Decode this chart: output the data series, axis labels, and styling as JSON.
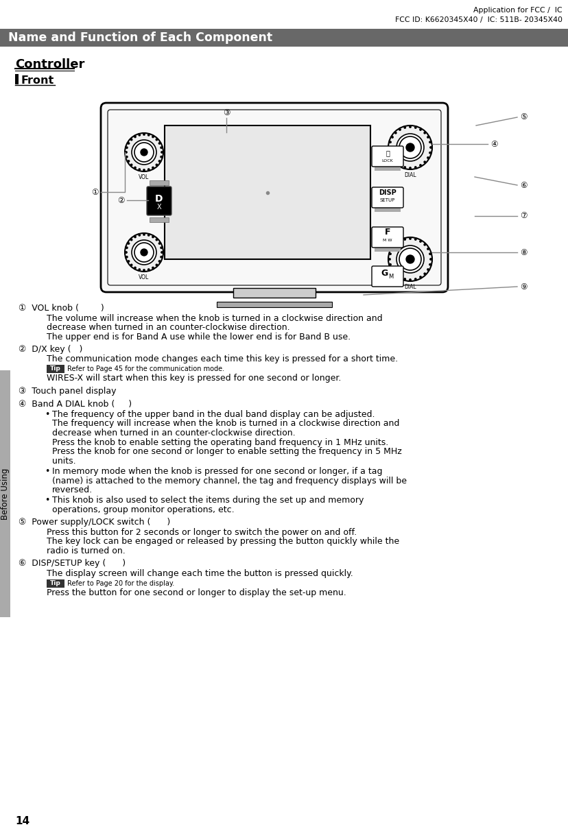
{
  "page_number": "14",
  "top_right_line1": "Application for FCC /  IC",
  "top_right_line2": "FCC ID: K6620345X40 /  IC: 511B- 20345X40",
  "header_bg": "#686868",
  "header_text": "Name and Function of Each Component",
  "header_text_color": "#ffffff",
  "section_title": "Controller",
  "subsection_title": "Front",
  "tip_bg": "#333333",
  "tip_text_color": "#ffffff",
  "sidebar_text": "Before Using",
  "sidebar_bg": "#aaaaaa"
}
